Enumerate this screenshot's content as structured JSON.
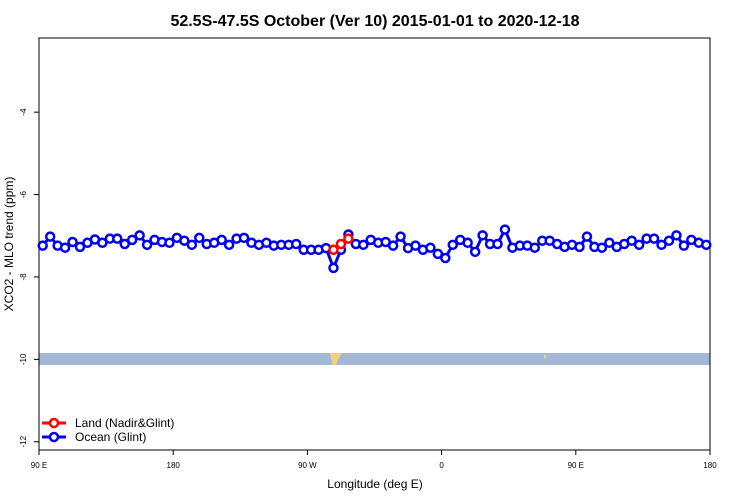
{
  "chart_data": {
    "type": "line",
    "title": "52.5S-47.5S October (Ver 10)   2015-01-01 to 2020-12-18",
    "x_label": "Longitude (deg E)",
    "y_label": "XCO2 - MLO trend (ppm)",
    "xlim": [
      90,
      540
    ],
    "xticks": [
      {
        "value": 90,
        "label": "90 E"
      },
      {
        "value": 180,
        "label": "180"
      },
      {
        "value": 270,
        "label": "90 W"
      },
      {
        "value": 360,
        "label": "0"
      },
      {
        "value": 450,
        "label": "90 E"
      },
      {
        "value": 540,
        "label": "180"
      }
    ],
    "ylim": [
      -12.2,
      -2.2
    ],
    "yticks": [
      -4,
      -6,
      -8,
      -10,
      -12
    ],
    "legend": "lower left",
    "series": [
      {
        "name": "Land (Nadir&Glint)",
        "color": "#ff0000",
        "x": [
          287.5,
          292.5,
          297.5
        ],
        "values": [
          -7.34,
          -7.2,
          -7.07
        ]
      },
      {
        "name": "Ocean (Glint)",
        "color": "#0000ee",
        "x": [
          92.5,
          97.5,
          102.5,
          107.5,
          112.5,
          117.5,
          122.5,
          127.5,
          132.5,
          137.5,
          142.5,
          147.5,
          152.5,
          157.5,
          162.5,
          167.5,
          172.5,
          177.5,
          182.5,
          187.5,
          192.5,
          197.5,
          202.5,
          207.5,
          212.5,
          217.5,
          222.5,
          227.5,
          232.5,
          237.5,
          242.5,
          247.5,
          252.5,
          257.5,
          262.5,
          267.5,
          272.5,
          277.5,
          282.5,
          287.5,
          292.5,
          297.5,
          302.5,
          307.5,
          312.5,
          317.5,
          322.5,
          327.5,
          332.5,
          337.5,
          342.5,
          347.5,
          352.5,
          357.5,
          362.5,
          367.5,
          372.5,
          377.5,
          382.5,
          387.5,
          392.5,
          397.5,
          402.5,
          407.5,
          412.5,
          417.5,
          422.5,
          427.5,
          432.5,
          437.5,
          442.5,
          447.5,
          452.5,
          457.5,
          462.5,
          467.5,
          472.5,
          477.5,
          482.5,
          487.5,
          492.5,
          497.5,
          502.5,
          507.5,
          512.5,
          517.5,
          522.5,
          527.5,
          532.5,
          537.5
        ],
        "values": [
          -7.24,
          -7.02,
          -7.24,
          -7.29,
          -7.15,
          -7.27,
          -7.17,
          -7.09,
          -7.17,
          -7.07,
          -7.07,
          -7.2,
          -7.1,
          -6.99,
          -7.22,
          -7.1,
          -7.15,
          -7.17,
          -7.05,
          -7.12,
          -7.22,
          -7.05,
          -7.2,
          -7.17,
          -7.1,
          -7.22,
          -7.07,
          -7.05,
          -7.17,
          -7.22,
          -7.17,
          -7.24,
          -7.22,
          -7.22,
          -7.2,
          -7.34,
          -7.34,
          -7.34,
          -7.3,
          -7.78,
          -7.34,
          -6.97,
          -7.2,
          -7.22,
          -7.1,
          -7.17,
          -7.15,
          -7.24,
          -7.02,
          -7.3,
          -7.24,
          -7.34,
          -7.29,
          -7.44,
          -7.54,
          -7.22,
          -7.1,
          -7.17,
          -7.39,
          -6.99,
          -7.2,
          -7.2,
          -6.85,
          -7.29,
          -7.24,
          -7.24,
          -7.29,
          -7.12,
          -7.12,
          -7.2,
          -7.27,
          -7.22,
          -7.27,
          -7.02,
          -7.27,
          -7.29,
          -7.17,
          -7.27,
          -7.2,
          -7.12,
          -7.22,
          -7.07,
          -7.07,
          -7.22,
          -7.12,
          -6.99,
          -7.24,
          -7.1,
          -7.17,
          -7.22
        ]
      }
    ]
  }
}
